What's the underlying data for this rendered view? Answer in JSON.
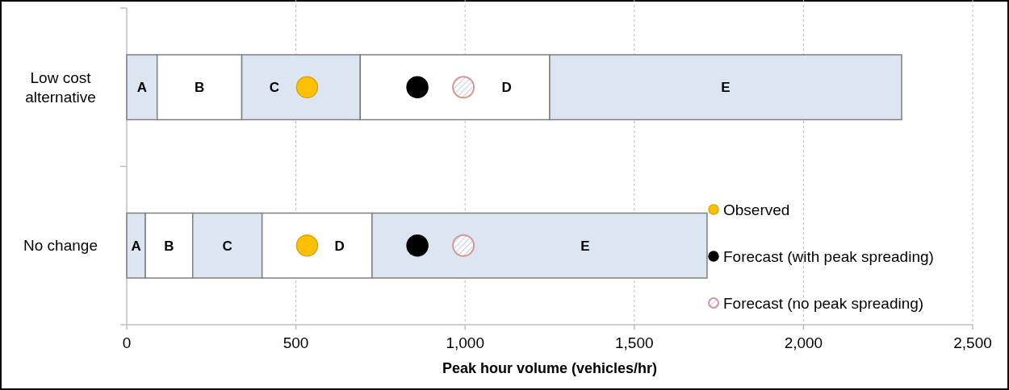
{
  "chart_data": {
    "type": "bar",
    "orientation": "horizontal",
    "stacked": true,
    "xlabel": "Peak hour volume (vehicles/hr)",
    "categories": [
      "Low cost alternative",
      "No change"
    ],
    "xlim": [
      0,
      2500
    ],
    "xticks": [
      0,
      {
        "value": 500,
        "label": "500"
      },
      {
        "value": 1000,
        "label": "1,000"
      },
      {
        "value": 1500,
        "label": "1,500"
      },
      {
        "value": 2000,
        "label": "2,000"
      },
      {
        "value": 2500,
        "label": "2,500"
      }
    ],
    "grid": "x",
    "legend": "bottom right",
    "marker": "circle",
    "series": [
      {
        "name": "A",
        "color": "#dce6f2",
        "values": [
          90,
          55
        ]
      },
      {
        "name": "B",
        "color": "#ffffff",
        "values": [
          250,
          140
        ]
      },
      {
        "name": "C",
        "color": "#dce6f2",
        "values": [
          350,
          205
        ]
      },
      {
        "name": "D",
        "color": "#ffffff",
        "values": [
          560,
          325
        ]
      },
      {
        "name": "E",
        "color": "#dce6f2",
        "values": [
          1040,
          990
        ]
      },
      {
        "type": "scatter",
        "name": "Observed",
        "color": "#ffc000",
        "values": [
          533,
          533
        ]
      },
      {
        "type": "scatter",
        "name": "Forecast (with peak spreading)",
        "color": "#000000",
        "values": [
          859,
          859
        ]
      },
      {
        "type": "scatter",
        "name": "Forecast (no peak spreading)",
        "color": "#d99694",
        "values": [
          995,
          995
        ]
      }
    ]
  }
}
